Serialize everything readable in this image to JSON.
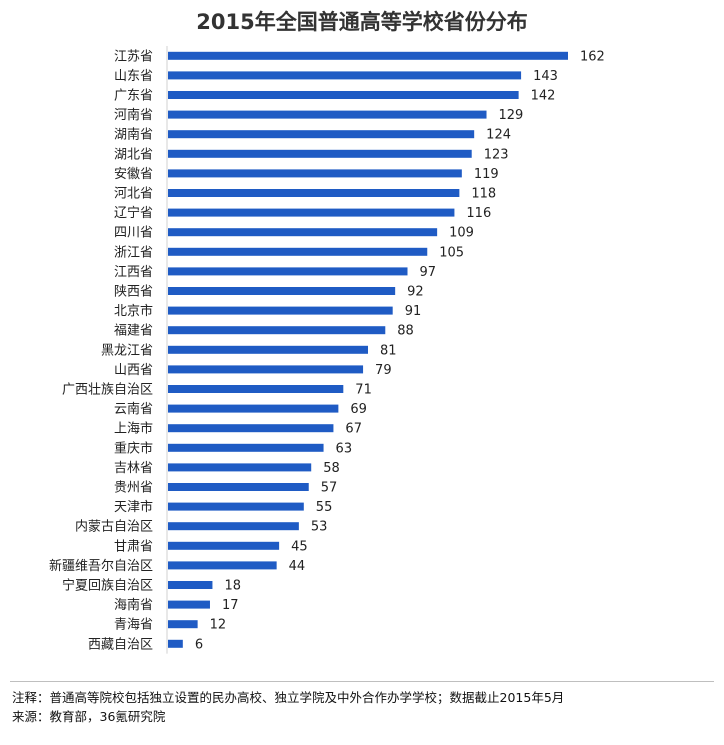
{
  "title": "2015年全国普通高等学校省份分布",
  "chart_data": {
    "type": "bar",
    "orientation": "horizontal",
    "bar_color": "#1f5bc4",
    "categories": [
      "江苏省",
      "山东省",
      "广东省",
      "河南省",
      "湖南省",
      "湖北省",
      "安徽省",
      "河北省",
      "辽宁省",
      "四川省",
      "浙江省",
      "江西省",
      "陕西省",
      "北京市",
      "福建省",
      "黑龙江省",
      "山西省",
      "广西壮族自治区",
      "云南省",
      "上海市",
      "重庆市",
      "吉林省",
      "贵州省",
      "天津市",
      "内蒙古自治区",
      "甘肃省",
      "新疆维吾尔自治区",
      "宁夏回族自治区",
      "海南省",
      "青海省",
      "西藏自治区"
    ],
    "values": [
      162,
      143,
      142,
      129,
      124,
      123,
      119,
      118,
      116,
      109,
      105,
      97,
      92,
      91,
      88,
      81,
      79,
      71,
      69,
      67,
      63,
      58,
      57,
      55,
      53,
      45,
      44,
      18,
      17,
      12,
      6
    ],
    "xlim": [
      0,
      170
    ]
  },
  "footer": {
    "note": "注释：普通高等院校包括独立设置的民办高校、独立学院及中外合作办学学校；数据截止2015年5月",
    "source": "来源：教育部，36氪研究院"
  }
}
